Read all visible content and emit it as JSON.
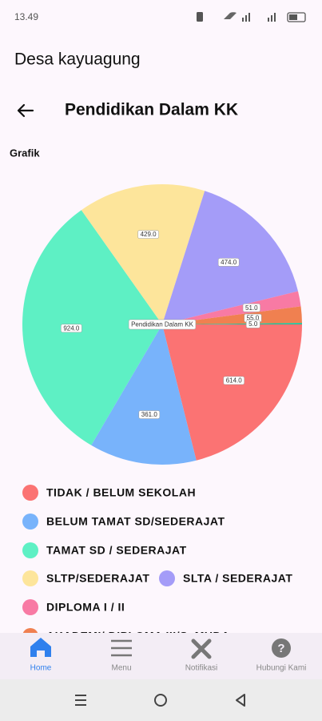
{
  "status_bar": {
    "time": "13.49"
  },
  "app_bar": {
    "title": "Desa kayuagung"
  },
  "header": {
    "title": "Pendidikan Dalam KK"
  },
  "section_label": "Grafik",
  "chart_data": {
    "type": "pie",
    "title": "Pendidikan Dalam KK",
    "categories": [
      "TIDAK / BELUM SEKOLAH",
      "BELUM TAMAT SD/SEDERAJAT",
      "TAMAT SD / SEDERAJAT",
      "SLTP/SEDERAJAT",
      "SLTA / SEDERAJAT",
      "DIPLOMA I / II",
      "AKADEMI/ DIPLOMA III/S. MUDA",
      null
    ],
    "values": [
      614,
      361,
      924,
      429,
      474,
      51,
      55,
      5
    ],
    "value_labels": [
      "614.0",
      "361.0",
      "924.0",
      "429.0",
      "474.0",
      "51.0",
      "55.0",
      "5.0"
    ],
    "colors": [
      "#fb7373",
      "#78b3fb",
      "#5ef0c4",
      "#fde59b",
      "#a49cf8",
      "#f87aa4",
      "#f08050",
      "#1fc29a"
    ]
  },
  "nav": {
    "items": [
      "Home",
      "Menu",
      "Notifikasi",
      "Hubungi Kami"
    ]
  }
}
